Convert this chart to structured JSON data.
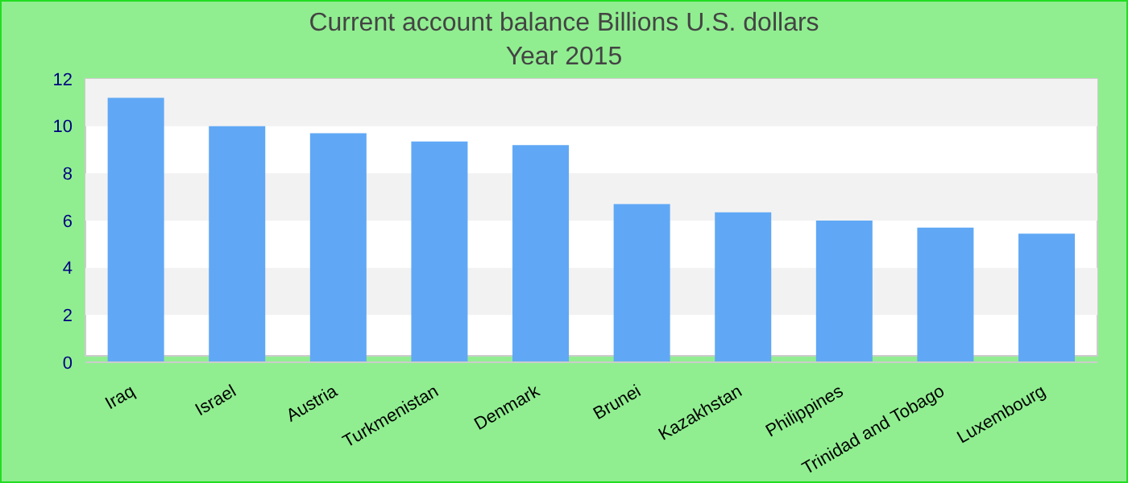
{
  "chart_data": {
    "type": "bar",
    "title": "Current account balance Billions U.S. dollars",
    "subtitle": "Year 2015",
    "categories": [
      "Iraq",
      "Israel",
      "Austria",
      "Turkmenistan",
      "Denmark",
      "Brunei",
      "Kazakhstan",
      "Philippines",
      "Trinidad and Tobago",
      "Luxembourg"
    ],
    "values": [
      11.2,
      10.0,
      9.7,
      9.35,
      9.2,
      6.7,
      6.35,
      6.0,
      5.7,
      5.45
    ],
    "color": "#60a8f5",
    "ylim": [
      0,
      12
    ],
    "yticks": [
      0,
      2,
      4,
      6,
      8,
      10,
      12
    ],
    "bands": [
      {
        "axis": "y",
        "from": 2,
        "to": 4,
        "color": "#f2f2f2"
      },
      {
        "axis": "y",
        "from": 6,
        "to": 8,
        "color": "#f2f2f2"
      },
      {
        "axis": "y",
        "from": 10,
        "to": 12,
        "color": "#f2f2f2"
      }
    ]
  }
}
